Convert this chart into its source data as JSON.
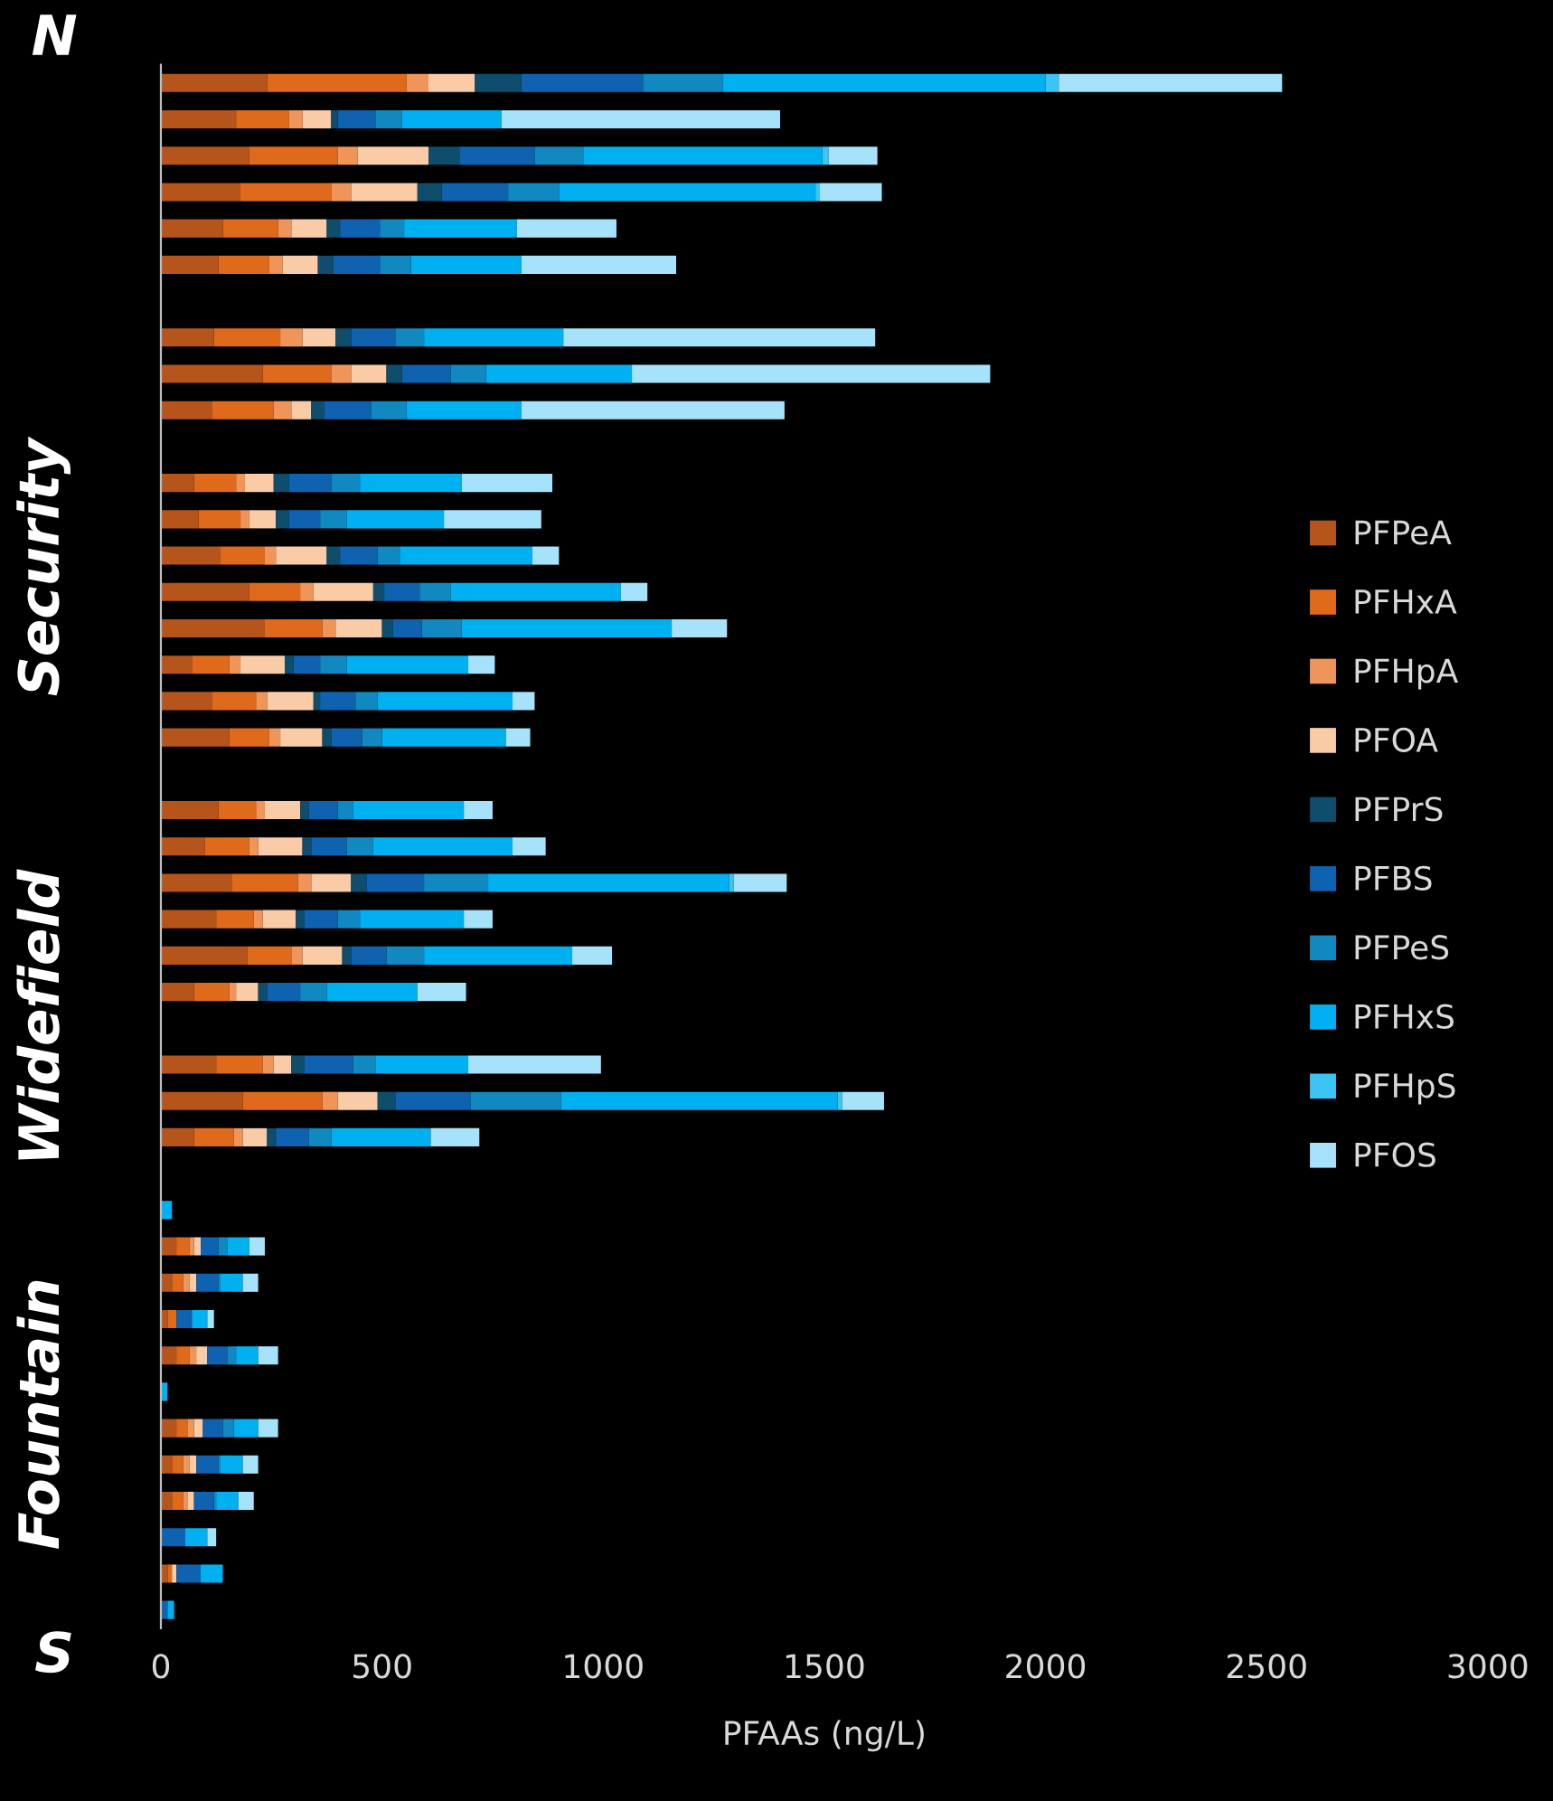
{
  "chart_data": {
    "type": "bar",
    "orientation": "horizontal",
    "stacked": true,
    "categories": [
      null,
      null,
      null,
      null,
      null,
      null,
      null,
      null,
      null,
      null,
      null,
      null,
      null,
      null,
      null,
      null,
      null,
      null,
      null,
      null,
      null,
      null,
      null,
      null,
      null,
      null,
      null,
      null,
      null,
      null,
      null,
      null,
      null,
      null,
      null,
      null,
      null,
      null,
      null,
      null,
      null,
      null,
      null
    ],
    "xlabel": "PFAAs (ng/L)",
    "xlim": [
      0,
      3000
    ],
    "xticks": [
      0,
      500,
      1000,
      1500,
      2000,
      2500,
      3000
    ],
    "legend": "right",
    "grid": false,
    "annotations": [
      "N",
      "Security",
      "Widefield",
      "Fountain",
      "S"
    ],
    "series": [
      {
        "name": "PFPeA",
        "color": "#b5541b",
        "values": [
          240,
          170,
          200,
          180,
          140,
          130,
          null,
          120,
          230,
          115,
          null,
          75,
          85,
          135,
          200,
          235,
          70,
          115,
          155,
          null,
          130,
          100,
          160,
          125,
          195,
          75,
          null,
          125,
          185,
          75,
          null,
          0,
          35,
          25,
          15,
          35,
          0,
          35,
          25,
          25,
          0,
          15,
          0
        ]
      },
      {
        "name": "PFHxA",
        "color": "#e06a1b",
        "values": [
          315,
          120,
          200,
          205,
          125,
          115,
          null,
          150,
          155,
          140,
          null,
          95,
          95,
          100,
          115,
          130,
          85,
          100,
          90,
          null,
          85,
          100,
          150,
          85,
          100,
          80,
          null,
          105,
          180,
          90,
          null,
          0,
          30,
          25,
          20,
          30,
          0,
          25,
          25,
          25,
          0,
          10,
          0
        ]
      },
      {
        "name": "PFHpA",
        "color": "#f0955a",
        "values": [
          50,
          30,
          45,
          45,
          30,
          30,
          null,
          50,
          45,
          40,
          null,
          20,
          20,
          25,
          30,
          30,
          25,
          25,
          25,
          null,
          20,
          20,
          30,
          20,
          25,
          15,
          null,
          25,
          35,
          20,
          null,
          0,
          10,
          15,
          0,
          15,
          0,
          15,
          15,
          10,
          0,
          0,
          0
        ]
      },
      {
        "name": "PFOA",
        "color": "#f9cba6",
        "values": [
          105,
          65,
          160,
          150,
          80,
          80,
          null,
          75,
          80,
          45,
          null,
          65,
          60,
          115,
          135,
          105,
          100,
          105,
          95,
          null,
          80,
          100,
          90,
          75,
          90,
          50,
          null,
          40,
          90,
          55,
          null,
          0,
          15,
          15,
          0,
          25,
          0,
          20,
          15,
          15,
          0,
          10,
          0
        ]
      },
      {
        "name": "PFPrS",
        "color": "#0e4d6b",
        "values": [
          105,
          15,
          70,
          55,
          30,
          35,
          null,
          35,
          35,
          30,
          null,
          35,
          30,
          30,
          25,
          25,
          20,
          15,
          20,
          null,
          20,
          20,
          35,
          20,
          20,
          20,
          null,
          30,
          40,
          20,
          null,
          0,
          0,
          0,
          0,
          0,
          0,
          0,
          0,
          0,
          0,
          0,
          0
        ]
      },
      {
        "name": "PFBS",
        "color": "#0f62b0",
        "values": [
          275,
          85,
          170,
          150,
          90,
          105,
          null,
          100,
          110,
          105,
          null,
          95,
          70,
          85,
          80,
          65,
          60,
          80,
          70,
          null,
          65,
          80,
          130,
          75,
          80,
          75,
          null,
          110,
          170,
          75,
          null,
          0,
          40,
          50,
          35,
          45,
          0,
          45,
          50,
          45,
          55,
          55,
          15
        ]
      },
      {
        "name": "PFPeS",
        "color": "#1288c0",
        "values": [
          180,
          60,
          110,
          115,
          55,
          70,
          null,
          65,
          80,
          80,
          null,
          65,
          60,
          50,
          70,
          90,
          60,
          50,
          45,
          null,
          35,
          60,
          145,
          50,
          85,
          60,
          null,
          50,
          205,
          50,
          null,
          0,
          20,
          5,
          0,
          20,
          0,
          25,
          5,
          5,
          0,
          0,
          0
        ]
      },
      {
        "name": "PFHxS",
        "color": "#00b0f0",
        "values": [
          730,
          225,
          540,
          580,
          255,
          250,
          null,
          315,
          330,
          260,
          null,
          230,
          220,
          300,
          385,
          475,
          275,
          305,
          280,
          null,
          250,
          315,
          545,
          235,
          335,
          205,
          null,
          210,
          625,
          225,
          null,
          25,
          50,
          50,
          35,
          50,
          15,
          55,
          50,
          50,
          50,
          50,
          15
        ]
      },
      {
        "name": "PFHpS",
        "color": "#3cc4f4",
        "values": [
          30,
          0,
          15,
          10,
          0,
          0,
          null,
          0,
          0,
          0,
          null,
          0,
          0,
          0,
          0,
          0,
          0,
          0,
          0,
          null,
          0,
          0,
          10,
          0,
          0,
          0,
          null,
          0,
          10,
          0,
          null,
          0,
          0,
          0,
          0,
          0,
          0,
          0,
          0,
          0,
          0,
          0,
          0
        ]
      },
      {
        "name": "PFOS",
        "color": "#a6e3fa",
        "values": [
          505,
          630,
          110,
          140,
          225,
          350,
          null,
          705,
          810,
          595,
          null,
          205,
          220,
          60,
          60,
          125,
          60,
          50,
          55,
          null,
          65,
          75,
          120,
          65,
          90,
          110,
          null,
          300,
          95,
          110,
          null,
          0,
          35,
          35,
          15,
          45,
          0,
          45,
          35,
          35,
          20,
          0,
          0
        ]
      }
    ]
  }
}
